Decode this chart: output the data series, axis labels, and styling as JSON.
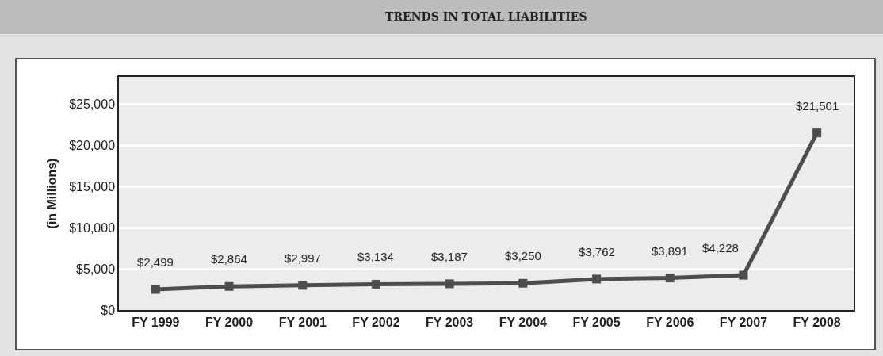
{
  "chart_data": {
    "type": "line",
    "title": "TRENDS IN TOTAL LIABILITIES",
    "ylabel": "(in Millions)",
    "categories": [
      "FY 1999",
      "FY 2000",
      "FY 2001",
      "FY 2002",
      "FY 2003",
      "FY 2004",
      "FY 2005",
      "FY 2006",
      "FY 2007",
      "FY 2008"
    ],
    "series": [
      {
        "color": "#4d4d4d",
        "values": [
          2499,
          2864,
          2997,
          3134,
          3187,
          3250,
          3762,
          3891,
          4228,
          21501
        ],
        "value_labels": [
          "$2,499",
          "$2,864",
          "$2,997",
          "$3,134",
          "$3,187",
          "$3,250",
          "$3,762",
          "$3,891",
          "$4,228",
          "$21,501"
        ]
      }
    ],
    "ylim": [
      0,
      28300
    ],
    "yticks": [
      {
        "value": 0,
        "label": "$0"
      },
      {
        "value": 5000,
        "label": "$5,000"
      },
      {
        "value": 10000,
        "label": "$10,000"
      },
      {
        "value": 15000,
        "label": "$15,000"
      },
      {
        "value": 20000,
        "label": "$20,000"
      },
      {
        "value": 25000,
        "label": "$25,000"
      }
    ],
    "grid": "y",
    "marker": "square",
    "line_style": "solid"
  }
}
